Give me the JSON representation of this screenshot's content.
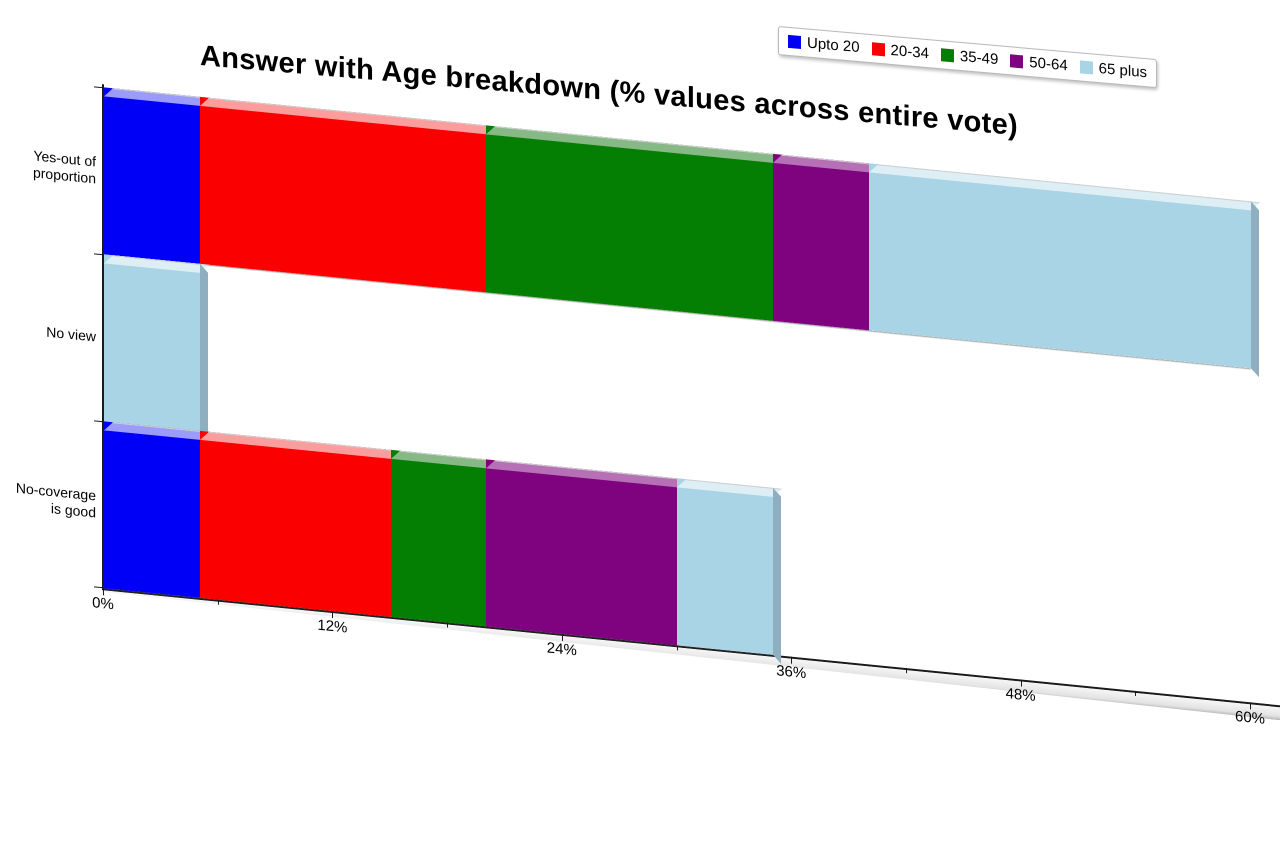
{
  "title": "Answer with Age breakdown (% values across entire vote)",
  "chart_data": {
    "type": "bar",
    "orientation": "horizontal",
    "stacked": true,
    "style": "3d-oblique",
    "title": "Answer with Age breakdown (% values across entire vote)",
    "categories": [
      "Yes-out of proportion",
      "No view",
      "No-coverage is good"
    ],
    "category_label_lines": [
      [
        "Yes-out of",
        "proportion"
      ],
      [
        "No view"
      ],
      [
        "No-coverage",
        "is good"
      ]
    ],
    "series": [
      {
        "name": "Upto 20",
        "color": "#0000f6",
        "bevel": "#9b9cfa",
        "values": [
          5,
          0,
          5
        ]
      },
      {
        "name": "20-34",
        "color": "#fa0000",
        "bevel": "#fb9d9d",
        "values": [
          15,
          0,
          10
        ]
      },
      {
        "name": "35-49",
        "color": "#047f04",
        "bevel": "#87b987",
        "values": [
          15,
          0,
          5
        ]
      },
      {
        "name": "50-64",
        "color": "#7f037f",
        "bevel": "#b671b6",
        "values": [
          5,
          0,
          10
        ]
      },
      {
        "name": "65 plus",
        "color": "#a9d4e5",
        "bevel": "#ddeef5",
        "values": [
          20,
          5,
          5
        ]
      }
    ],
    "totals": [
      60,
      5,
      35
    ],
    "xlim": [
      0,
      60
    ],
    "x_major_tick_step": 12,
    "x_minor_tick_step": 6,
    "x_tick_labels": [
      "0%",
      "12%",
      "24%",
      "36%",
      "48%",
      "60%"
    ],
    "legend_position": "top-right",
    "grid": false
  },
  "colors": {
    "background": "#ffffff",
    "axis": "#1a1a1a",
    "bar_side_face": "#8fafc0",
    "floor_top": "#f6f6f6",
    "floor_bottom": "#b5b5b5",
    "legend_border": "#b9b9b9",
    "text": "#000000"
  }
}
